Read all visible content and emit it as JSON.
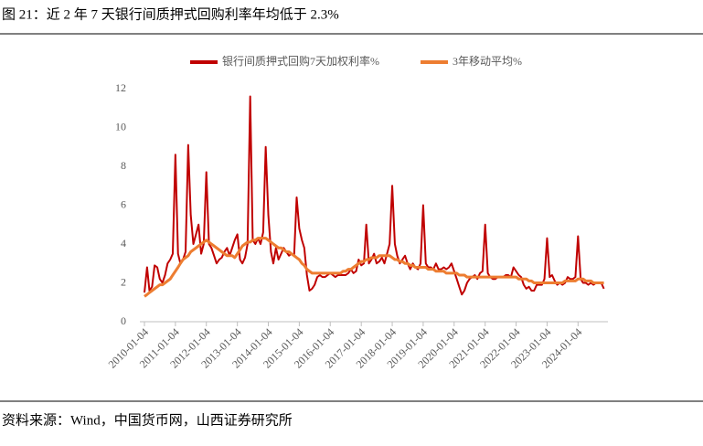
{
  "header": {
    "title": "图 21：近 2 年 7 天银行间质押式回购利率年均低于 2.3%"
  },
  "footer": {
    "source": "资料来源：Wind，中国货币网，山西证券研究所"
  },
  "chart_data": {
    "type": "line",
    "x": [
      "2010-01-04",
      "2010-02-04",
      "2010-03-04",
      "2010-04-04",
      "2010-05-04",
      "2010-06-04",
      "2010-07-04",
      "2010-08-04",
      "2010-09-04",
      "2010-10-04",
      "2010-11-04",
      "2010-12-04",
      "2011-01-04",
      "2011-02-04",
      "2011-03-04",
      "2011-04-04",
      "2011-05-04",
      "2011-06-04",
      "2011-07-04",
      "2011-08-04",
      "2011-09-04",
      "2011-10-04",
      "2011-11-04",
      "2011-12-04",
      "2012-01-04",
      "2012-02-04",
      "2012-03-04",
      "2012-04-04",
      "2012-05-04",
      "2012-06-04",
      "2012-07-04",
      "2012-08-04",
      "2012-09-04",
      "2012-10-04",
      "2012-11-04",
      "2012-12-04",
      "2013-01-04",
      "2013-02-04",
      "2013-03-04",
      "2013-04-04",
      "2013-05-04",
      "2013-06-04",
      "2013-07-04",
      "2013-08-04",
      "2013-09-04",
      "2013-10-04",
      "2013-11-04",
      "2013-12-04",
      "2014-01-04",
      "2014-02-04",
      "2014-03-04",
      "2014-04-04",
      "2014-05-04",
      "2014-06-04",
      "2014-07-04",
      "2014-08-04",
      "2014-09-04",
      "2014-10-04",
      "2014-11-04",
      "2014-12-04",
      "2015-01-04",
      "2015-02-04",
      "2015-03-04",
      "2015-04-04",
      "2015-05-04",
      "2015-06-04",
      "2015-07-04",
      "2015-08-04",
      "2015-09-04",
      "2015-10-04",
      "2015-11-04",
      "2015-12-04",
      "2016-01-04",
      "2016-02-04",
      "2016-03-04",
      "2016-04-04",
      "2016-05-04",
      "2016-06-04",
      "2016-07-04",
      "2016-08-04",
      "2016-09-04",
      "2016-10-04",
      "2016-11-04",
      "2016-12-04",
      "2017-01-04",
      "2017-02-04",
      "2017-03-04",
      "2017-04-04",
      "2017-05-04",
      "2017-06-04",
      "2017-07-04",
      "2017-08-04",
      "2017-09-04",
      "2017-10-04",
      "2017-11-04",
      "2017-12-04",
      "2018-01-04",
      "2018-02-04",
      "2018-03-04",
      "2018-04-04",
      "2018-05-04",
      "2018-06-04",
      "2018-07-04",
      "2018-08-04",
      "2018-09-04",
      "2018-10-04",
      "2018-11-04",
      "2018-12-04",
      "2019-01-04",
      "2019-02-04",
      "2019-03-04",
      "2019-04-04",
      "2019-05-04",
      "2019-06-04",
      "2019-07-04",
      "2019-08-04",
      "2019-09-04",
      "2019-10-04",
      "2019-11-04",
      "2019-12-04",
      "2020-01-04",
      "2020-02-04",
      "2020-03-04",
      "2020-04-04",
      "2020-05-04",
      "2020-06-04",
      "2020-07-04",
      "2020-08-04",
      "2020-09-04",
      "2020-10-04",
      "2020-11-04",
      "2020-12-04",
      "2021-01-04",
      "2021-02-04",
      "2021-03-04",
      "2021-04-04",
      "2021-05-04",
      "2021-06-04",
      "2021-07-04",
      "2021-08-04",
      "2021-09-04",
      "2021-10-04",
      "2021-11-04",
      "2021-12-04",
      "2022-01-04",
      "2022-02-04",
      "2022-03-04",
      "2022-04-04",
      "2022-05-04",
      "2022-06-04",
      "2022-07-04",
      "2022-08-04",
      "2022-09-04",
      "2022-10-04",
      "2022-11-04",
      "2022-12-04",
      "2023-01-04",
      "2023-02-04",
      "2023-03-04",
      "2023-04-04",
      "2023-05-04",
      "2023-06-04",
      "2023-07-04",
      "2023-08-04",
      "2023-09-04",
      "2023-10-04",
      "2023-11-04",
      "2023-12-04",
      "2024-01-04",
      "2024-02-04",
      "2024-03-04",
      "2024-04-04",
      "2024-05-04",
      "2024-06-04",
      "2024-07-04",
      "2024-08-04",
      "2024-09-04",
      "2024-10-04",
      "2024-11-04"
    ],
    "series": [
      {
        "name": "银行间质押式回购7天加权利率%",
        "color": "#c00000",
        "values": [
          1.5,
          2.8,
          1.6,
          1.8,
          2.9,
          2.8,
          2.2,
          2.0,
          2.4,
          3.0,
          3.2,
          3.5,
          8.6,
          3.5,
          3.0,
          3.2,
          3.6,
          9.1,
          5.5,
          4.0,
          4.5,
          5.0,
          3.5,
          4.0,
          7.7,
          4.0,
          3.8,
          3.4,
          3.0,
          3.2,
          3.3,
          3.6,
          3.8,
          3.4,
          3.8,
          4.2,
          4.5,
          3.2,
          3.0,
          3.3,
          4.0,
          11.6,
          4.2,
          4.0,
          4.3,
          4.0,
          4.6,
          9.0,
          5.5,
          3.6,
          3.0,
          3.8,
          3.2,
          3.5,
          3.8,
          3.6,
          3.4,
          3.5,
          3.4,
          6.4,
          4.8,
          4.2,
          3.8,
          2.4,
          1.6,
          1.7,
          1.9,
          2.3,
          2.4,
          2.3,
          2.3,
          2.4,
          2.5,
          2.4,
          2.3,
          2.4,
          2.4,
          2.4,
          2.4,
          2.5,
          2.7,
          2.5,
          2.6,
          3.2,
          2.9,
          3.0,
          5.0,
          3.0,
          3.2,
          3.5,
          3.0,
          3.1,
          3.3,
          3.0,
          3.5,
          4.0,
          7.0,
          4.0,
          3.4,
          3.0,
          3.2,
          3.4,
          3.0,
          2.7,
          3.0,
          2.8,
          2.7,
          3.0,
          6.0,
          3.0,
          2.8,
          2.8,
          2.7,
          3.0,
          2.7,
          2.7,
          2.8,
          2.7,
          2.8,
          3.0,
          2.6,
          2.2,
          1.8,
          1.4,
          1.6,
          2.0,
          2.2,
          2.3,
          2.4,
          2.2,
          2.5,
          2.6,
          5.0,
          2.5,
          2.3,
          2.2,
          2.2,
          2.3,
          2.3,
          2.3,
          2.4,
          2.4,
          2.3,
          2.8,
          2.6,
          2.4,
          2.3,
          1.9,
          1.7,
          1.8,
          1.6,
          1.6,
          1.9,
          1.9,
          1.9,
          2.2,
          4.3,
          2.3,
          2.4,
          2.1,
          1.9,
          2.0,
          1.9,
          2.0,
          2.3,
          2.2,
          2.2,
          2.3,
          4.4,
          2.2,
          2.0,
          2.0,
          1.9,
          2.0,
          1.9,
          2.0,
          2.0,
          2.0,
          1.7
        ]
      },
      {
        "name": "3年移动平均%",
        "color": "#ed7d31",
        "values": [
          1.3,
          1.4,
          1.5,
          1.6,
          1.7,
          1.8,
          1.9,
          1.9,
          2.0,
          2.1,
          2.2,
          2.4,
          2.6,
          2.8,
          3.0,
          3.2,
          3.3,
          3.4,
          3.6,
          3.7,
          3.8,
          3.9,
          4.0,
          4.1,
          4.2,
          4.1,
          4.0,
          3.9,
          3.8,
          3.7,
          3.6,
          3.5,
          3.4,
          3.4,
          3.4,
          3.3,
          3.5,
          3.7,
          3.9,
          4.0,
          4.1,
          4.1,
          4.2,
          4.2,
          4.3,
          4.3,
          4.3,
          4.3,
          4.2,
          4.1,
          4.0,
          3.9,
          3.8,
          3.8,
          3.7,
          3.6,
          3.6,
          3.5,
          3.4,
          3.3,
          3.2,
          3.0,
          2.9,
          2.7,
          2.6,
          2.5,
          2.5,
          2.5,
          2.5,
          2.5,
          2.5,
          2.5,
          2.5,
          2.5,
          2.5,
          2.5,
          2.5,
          2.6,
          2.6,
          2.7,
          2.7,
          2.8,
          2.9,
          3.0,
          3.1,
          3.1,
          3.2,
          3.2,
          3.3,
          3.3,
          3.3,
          3.4,
          3.4,
          3.4,
          3.4,
          3.4,
          3.3,
          3.2,
          3.2,
          3.1,
          3.1,
          3.0,
          3.0,
          2.9,
          2.9,
          2.8,
          2.8,
          2.8,
          2.8,
          2.8,
          2.7,
          2.7,
          2.7,
          2.6,
          2.6,
          2.6,
          2.6,
          2.5,
          2.5,
          2.5,
          2.5,
          2.5,
          2.4,
          2.4,
          2.4,
          2.3,
          2.3,
          2.3,
          2.3,
          2.3,
          2.3,
          2.3,
          2.3,
          2.3,
          2.3,
          2.3,
          2.3,
          2.3,
          2.3,
          2.3,
          2.3,
          2.3,
          2.3,
          2.3,
          2.3,
          2.2,
          2.2,
          2.2,
          2.2,
          2.1,
          2.1,
          2.0,
          2.0,
          2.0,
          2.0,
          2.0,
          2.0,
          2.0,
          2.0,
          2.0,
          2.0,
          2.0,
          2.0,
          2.1,
          2.1,
          2.1,
          2.1,
          2.1,
          2.2,
          2.2,
          2.2,
          2.1,
          2.1,
          2.1,
          2.0,
          2.0,
          2.0,
          2.0,
          2.0
        ]
      }
    ],
    "xlim": [
      "2010-01-04",
      "2024-11-30"
    ],
    "xticks": [
      "2010-01-04",
      "2011-01-04",
      "2012-01-04",
      "2013-01-04",
      "2014-01-04",
      "2015-01-04",
      "2016-01-04",
      "2017-01-04",
      "2018-01-04",
      "2019-01-04",
      "2020-01-04",
      "2021-01-04",
      "2022-01-04",
      "2023-01-04",
      "2024-01-04"
    ],
    "ylim": [
      0,
      12
    ],
    "yticks": [
      0,
      2,
      4,
      6,
      8,
      10,
      12
    ],
    "grid": false,
    "legend": "top"
  }
}
